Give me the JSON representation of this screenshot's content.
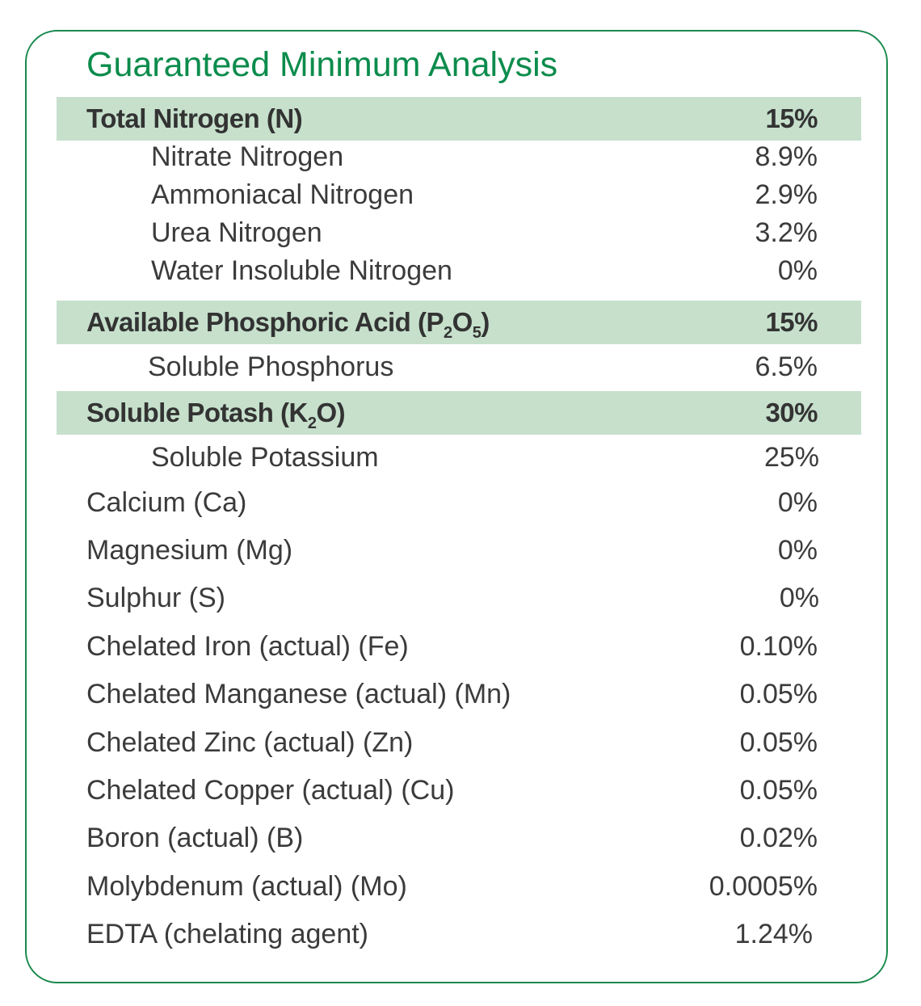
{
  "title": "Guaranteed Minimum Analysis",
  "nitrogen": {
    "label": "Total Nitrogen (N)",
    "value": "15%",
    "items": [
      {
        "label": "Nitrate Nitrogen",
        "value": "8.9%"
      },
      {
        "label": "Ammoniacal Nitrogen",
        "value": "2.9%"
      },
      {
        "label": "Urea Nitrogen",
        "value": "3.2%"
      },
      {
        "label": "Water Insoluble Nitrogen",
        "value": "0%"
      }
    ]
  },
  "phosphoric": {
    "label_before": "Available Phosphoric Acid (P",
    "sub1": "2",
    "label_mid": "O",
    "sub2": "5",
    "label_after": ")",
    "value": "15%",
    "items": [
      {
        "label": "Soluble Phosphorus",
        "value": "6.5%"
      }
    ]
  },
  "potash": {
    "label_before": "Soluble Potash (K",
    "sub": "2",
    "label_after": "O)",
    "value": "30%",
    "items": [
      {
        "label": "Soluble Potassium",
        "value": "25%"
      }
    ]
  },
  "nutrients": [
    {
      "label": "Calcium (Ca)",
      "value": "0%"
    },
    {
      "label": "Magnesium (Mg)",
      "value": "0%"
    },
    {
      "label": "Sulphur (S)",
      "value": "0%"
    },
    {
      "label": "Chelated Iron (actual) (Fe)",
      "value": "0.10%"
    },
    {
      "label": "Chelated Manganese (actual) (Mn)",
      "value": "0.05%"
    },
    {
      "label": "Chelated Zinc (actual) (Zn)",
      "value": "0.05%"
    },
    {
      "label": "Chelated Copper (actual) (Cu)",
      "value": "0.05%"
    },
    {
      "label": "Boron (actual) (B)",
      "value": "0.02%"
    },
    {
      "label": "Molybdenum (actual) (Mo)",
      "value": "0.0005%"
    },
    {
      "label": "EDTA (chelating agent)",
      "value": "1.24%"
    }
  ],
  "colors": {
    "title": "#0b8c4c",
    "border": "#1a8a4e",
    "band": "#c6e0cc",
    "text": "#3b3b3b"
  }
}
